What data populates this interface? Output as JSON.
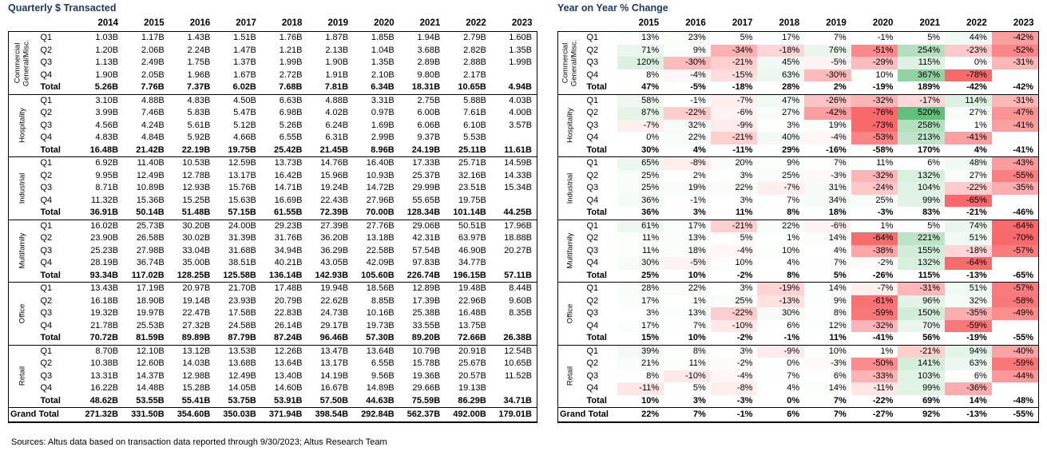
{
  "title_color": "#1f3864",
  "footer": {
    "source_note": "Sources: Altus data based on transaction data reported through 9/30/2023; Altus Research Team"
  },
  "chart_data": [
    {
      "type": "table",
      "title": "Quarterly $ Transacted",
      "years": [
        "2014",
        "2015",
        "2016",
        "2017",
        "2018",
        "2019",
        "2020",
        "2021",
        "2022",
        "2023"
      ],
      "quarter_labels": [
        "Q1",
        "Q2",
        "Q3",
        "Q4"
      ],
      "total_label": "Total",
      "grand_total_label": "Grand Total",
      "sectors": [
        {
          "name": "Commercial General/Misc.",
          "name_lines": [
            "Commercial",
            "General/Misc."
          ],
          "quarters": [
            [
              "1.03B",
              "1.17B",
              "1.43B",
              "1.51B",
              "1.76B",
              "1.87B",
              "1.85B",
              "1.94B",
              "2.79B",
              "1.60B"
            ],
            [
              "1.20B",
              "2.06B",
              "2.24B",
              "1.47B",
              "1.21B",
              "2.13B",
              "1.04B",
              "3.68B",
              "2.82B",
              "1.35B"
            ],
            [
              "1.13B",
              "2.49B",
              "1.75B",
              "1.37B",
              "1.99B",
              "1.90B",
              "1.35B",
              "2.89B",
              "2.88B",
              "1.99B"
            ],
            [
              "1.90B",
              "2.05B",
              "1.96B",
              "1.67B",
              "2.72B",
              "1.91B",
              "2.10B",
              "9.80B",
              "2.17B",
              ""
            ]
          ],
          "total": [
            "5.26B",
            "7.76B",
            "7.37B",
            "6.02B",
            "7.68B",
            "7.81B",
            "6.34B",
            "18.31B",
            "10.65B",
            "4.94B"
          ]
        },
        {
          "name": "Hospitality",
          "name_lines": [
            "Hospitality"
          ],
          "quarters": [
            [
              "3.10B",
              "4.88B",
              "4.83B",
              "4.50B",
              "6.63B",
              "4.88B",
              "3.31B",
              "2.75B",
              "5.88B",
              "4.03B"
            ],
            [
              "3.99B",
              "7.46B",
              "5.83B",
              "5.47B",
              "6.98B",
              "4.02B",
              "0.97B",
              "6.00B",
              "7.61B",
              "4.00B"
            ],
            [
              "4.56B",
              "4.24B",
              "5.61B",
              "5.12B",
              "5.26B",
              "6.24B",
              "1.69B",
              "6.06B",
              "6.10B",
              "3.57B"
            ],
            [
              "4.83B",
              "4.84B",
              "5.92B",
              "4.66B",
              "6.55B",
              "6.31B",
              "2.99B",
              "9.37B",
              "5.53B",
              ""
            ]
          ],
          "total": [
            "16.48B",
            "21.42B",
            "22.19B",
            "19.75B",
            "25.42B",
            "21.45B",
            "8.96B",
            "24.19B",
            "25.11B",
            "11.61B"
          ]
        },
        {
          "name": "Industrial",
          "name_lines": [
            "Industrial"
          ],
          "quarters": [
            [
              "6.92B",
              "11.40B",
              "10.53B",
              "12.59B",
              "13.73B",
              "14.76B",
              "16.40B",
              "17.33B",
              "25.71B",
              "14.59B"
            ],
            [
              "9.95B",
              "12.49B",
              "12.78B",
              "13.17B",
              "16.42B",
              "15.96B",
              "10.93B",
              "25.37B",
              "32.16B",
              "14.33B"
            ],
            [
              "8.71B",
              "10.89B",
              "12.93B",
              "15.76B",
              "14.71B",
              "19.24B",
              "14.72B",
              "29.99B",
              "23.51B",
              "15.34B"
            ],
            [
              "11.32B",
              "15.36B",
              "15.25B",
              "15.63B",
              "16.69B",
              "22.43B",
              "27.96B",
              "55.65B",
              "19.75B",
              ""
            ]
          ],
          "total": [
            "36.91B",
            "50.14B",
            "51.48B",
            "57.15B",
            "61.55B",
            "72.39B",
            "70.00B",
            "128.34B",
            "101.14B",
            "44.25B"
          ]
        },
        {
          "name": "Multifamily",
          "name_lines": [
            "Multifamily"
          ],
          "quarters": [
            [
              "16.02B",
              "25.73B",
              "30.20B",
              "24.00B",
              "29.23B",
              "27.39B",
              "27.76B",
              "29.06B",
              "50.51B",
              "17.96B"
            ],
            [
              "23.90B",
              "26.58B",
              "30.02B",
              "31.39B",
              "31.76B",
              "36.20B",
              "13.18B",
              "42.31B",
              "63.97B",
              "18.88B"
            ],
            [
              "25.23B",
              "27.98B",
              "33.04B",
              "31.68B",
              "34.94B",
              "36.29B",
              "22.58B",
              "57.54B",
              "46.90B",
              "20.27B"
            ],
            [
              "28.19B",
              "36.74B",
              "35.00B",
              "38.51B",
              "40.21B",
              "43.05B",
              "42.09B",
              "97.83B",
              "34.77B",
              ""
            ]
          ],
          "total": [
            "93.34B",
            "117.02B",
            "128.25B",
            "125.58B",
            "136.14B",
            "142.93B",
            "105.60B",
            "226.74B",
            "196.15B",
            "57.11B"
          ]
        },
        {
          "name": "Office",
          "name_lines": [
            "Office"
          ],
          "quarters": [
            [
              "13.43B",
              "17.19B",
              "20.97B",
              "21.70B",
              "17.48B",
              "19.94B",
              "18.56B",
              "12.89B",
              "19.48B",
              "8.44B"
            ],
            [
              "16.18B",
              "18.90B",
              "19.14B",
              "23.93B",
              "20.79B",
              "22.62B",
              "8.85B",
              "17.39B",
              "22.96B",
              "9.60B"
            ],
            [
              "19.32B",
              "19.97B",
              "22.47B",
              "17.58B",
              "22.83B",
              "24.73B",
              "10.16B",
              "25.38B",
              "16.48B",
              "8.35B"
            ],
            [
              "21.78B",
              "25.53B",
              "27.32B",
              "24.58B",
              "26.14B",
              "29.17B",
              "19.73B",
              "33.55B",
              "13.75B",
              ""
            ]
          ],
          "total": [
            "70.72B",
            "81.59B",
            "89.89B",
            "87.79B",
            "87.24B",
            "96.46B",
            "57.30B",
            "89.20B",
            "72.66B",
            "26.38B"
          ]
        },
        {
          "name": "Retail",
          "name_lines": [
            "Retail"
          ],
          "quarters": [
            [
              "8.70B",
              "12.10B",
              "13.12B",
              "13.53B",
              "12.26B",
              "13.47B",
              "13.64B",
              "10.79B",
              "20.91B",
              "12.54B"
            ],
            [
              "10.38B",
              "12.60B",
              "14.03B",
              "13.68B",
              "13.64B",
              "13.17B",
              "6.55B",
              "15.78B",
              "25.67B",
              "10.65B"
            ],
            [
              "13.31B",
              "14.37B",
              "12.98B",
              "12.49B",
              "13.40B",
              "14.19B",
              "9.56B",
              "19.36B",
              "20.57B",
              "11.52B"
            ],
            [
              "16.22B",
              "14.48B",
              "15.28B",
              "14.05B",
              "14.60B",
              "16.67B",
              "14.89B",
              "29.66B",
              "19.13B",
              ""
            ]
          ],
          "total": [
            "48.62B",
            "53.55B",
            "55.41B",
            "53.75B",
            "53.91B",
            "57.50B",
            "44.63B",
            "75.59B",
            "86.29B",
            "34.71B"
          ]
        }
      ],
      "grand_total": [
        "271.32B",
        "331.50B",
        "354.60B",
        "350.03B",
        "371.94B",
        "398.54B",
        "292.84B",
        "562.37B",
        "492.00B",
        "179.01B"
      ]
    },
    {
      "type": "heatmap",
      "title": "Year on Year % Change",
      "unit": "%",
      "years": [
        "2015",
        "2016",
        "2017",
        "2018",
        "2019",
        "2020",
        "2021",
        "2022",
        "2023"
      ],
      "quarter_labels": [
        "Q1",
        "Q2",
        "Q3",
        "Q4"
      ],
      "total_label": "Total",
      "grand_total_label": "Grand Total",
      "colors": {
        "positive_max": "#63be7b",
        "negative_max": "#f8696b",
        "neutral": "#ffffff",
        "scale_pos_limit": 520,
        "scale_neg_limit": -65
      },
      "sectors": [
        {
          "name": "Commercial General/Misc.",
          "name_lines": [
            "Commercial",
            "General/Misc."
          ],
          "quarters": [
            [
              13,
              23,
              5,
              17,
              7,
              -1,
              5,
              44,
              -42
            ],
            [
              71,
              9,
              -34,
              -18,
              76,
              -51,
              254,
              -23,
              -52
            ],
            [
              120,
              -30,
              -21,
              45,
              -5,
              -29,
              115,
              0,
              -31
            ],
            [
              8,
              -4,
              -15,
              63,
              -30,
              10,
              367,
              -78,
              null
            ]
          ],
          "total": [
            47,
            -5,
            -18,
            28,
            2,
            -19,
            189,
            -42,
            -42
          ]
        },
        {
          "name": "Hospitality",
          "name_lines": [
            "Hospitality"
          ],
          "quarters": [
            [
              58,
              -1,
              -7,
              47,
              -26,
              -32,
              -17,
              114,
              -31
            ],
            [
              87,
              -22,
              -6,
              27,
              -42,
              -76,
              520,
              27,
              -47
            ],
            [
              -7,
              32,
              -9,
              3,
              19,
              -73,
              258,
              1,
              -41
            ],
            [
              0,
              22,
              -21,
              40,
              -4,
              -53,
              213,
              -41,
              null
            ]
          ],
          "total": [
            30,
            4,
            -11,
            29,
            -16,
            -58,
            170,
            4,
            -41
          ]
        },
        {
          "name": "Industrial",
          "name_lines": [
            "Industrial"
          ],
          "quarters": [
            [
              65,
              -8,
              20,
              9,
              7,
              11,
              6,
              48,
              -43
            ],
            [
              25,
              2,
              3,
              25,
              -3,
              -32,
              132,
              27,
              -55
            ],
            [
              25,
              19,
              22,
              -7,
              31,
              -24,
              104,
              -22,
              -35
            ],
            [
              36,
              -1,
              3,
              7,
              34,
              25,
              99,
              -65,
              null
            ]
          ],
          "total": [
            36,
            3,
            11,
            8,
            18,
            -3,
            83,
            -21,
            -46
          ]
        },
        {
          "name": "Multifamily",
          "name_lines": [
            "Multifamily"
          ],
          "quarters": [
            [
              61,
              17,
              -21,
              22,
              -6,
              1,
              5,
              74,
              -64
            ],
            [
              11,
              13,
              5,
              1,
              14,
              -64,
              221,
              51,
              -70
            ],
            [
              11,
              18,
              -4,
              10,
              4,
              -38,
              155,
              -18,
              -57
            ],
            [
              30,
              -5,
              10,
              4,
              7,
              -2,
              132,
              -64,
              null
            ]
          ],
          "total": [
            25,
            10,
            -2,
            8,
            5,
            -26,
            115,
            -13,
            -65
          ]
        },
        {
          "name": "Office",
          "name_lines": [
            "Office"
          ],
          "quarters": [
            [
              28,
              22,
              3,
              -19,
              14,
              -7,
              -31,
              51,
              -57
            ],
            [
              17,
              1,
              25,
              -13,
              9,
              -61,
              96,
              32,
              -58
            ],
            [
              3,
              13,
              -22,
              30,
              8,
              -59,
              150,
              -35,
              -49
            ],
            [
              17,
              7,
              -10,
              6,
              12,
              -32,
              70,
              -59,
              null
            ]
          ],
          "total": [
            15,
            10,
            -2,
            -1,
            11,
            -41,
            56,
            -19,
            -55
          ]
        },
        {
          "name": "Retail",
          "name_lines": [
            "Retail"
          ],
          "quarters": [
            [
              39,
              8,
              3,
              -9,
              10,
              1,
              -21,
              94,
              -40
            ],
            [
              21,
              11,
              -2,
              0,
              -3,
              -50,
              141,
              63,
              -59
            ],
            [
              8,
              -10,
              -4,
              7,
              6,
              -33,
              103,
              6,
              -44
            ],
            [
              -11,
              5,
              -8,
              4,
              14,
              -11,
              99,
              -36,
              null
            ]
          ],
          "total": [
            10,
            3,
            -3,
            0,
            7,
            -22,
            69,
            14,
            -48
          ]
        }
      ],
      "grand_total": [
        22,
        7,
        -1,
        6,
        7,
        -27,
        92,
        -13,
        -55
      ]
    }
  ]
}
